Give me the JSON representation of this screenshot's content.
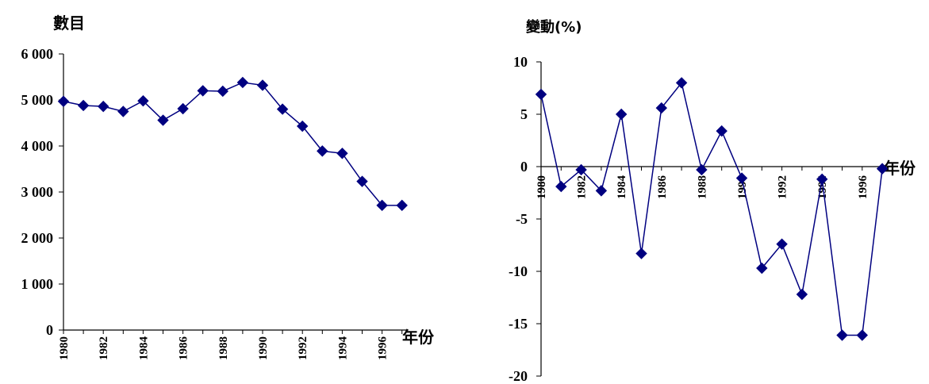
{
  "chart_data": [
    {
      "type": "line",
      "title": "數目",
      "xlabel": "年份",
      "ylabel": "",
      "ylim": [
        0,
        6000
      ],
      "yticks": [
        "0",
        "1 000",
        "2 000",
        "3 000",
        "4 000",
        "5 000",
        "6 000"
      ],
      "ytick_values": [
        0,
        1000,
        2000,
        3000,
        4000,
        5000,
        6000
      ],
      "x": [
        1980,
        1981,
        1982,
        1983,
        1984,
        1985,
        1986,
        1987,
        1988,
        1989,
        1990,
        1991,
        1992,
        1993,
        1994,
        1995,
        1996,
        1997
      ],
      "xtick_labels": [
        "1980",
        "1982",
        "1984",
        "1986",
        "1988",
        "1990",
        "1992",
        "1994",
        "1996"
      ],
      "series": [
        {
          "values": [
            4970,
            4880,
            4860,
            4750,
            4980,
            4560,
            4810,
            5200,
            5190,
            5380,
            5320,
            4800,
            4430,
            3890,
            3840,
            3230,
            2710,
            2710
          ]
        }
      ],
      "color": "#000080",
      "marker": "diamond",
      "grid": false,
      "legend": "none"
    },
    {
      "type": "line",
      "title": "變動(%)",
      "xlabel": "年份",
      "ylabel": "",
      "ylim": [
        -20,
        10
      ],
      "yticks": [
        "-20",
        "-15",
        "-10",
        "-5",
        "0",
        "5",
        "10"
      ],
      "ytick_values": [
        -20,
        -15,
        -10,
        -5,
        0,
        5,
        10
      ],
      "x": [
        1980,
        1981,
        1982,
        1983,
        1984,
        1985,
        1986,
        1987,
        1988,
        1989,
        1990,
        1991,
        1992,
        1993,
        1994,
        1995,
        1996,
        1997
      ],
      "xtick_labels": [
        "1980",
        "1982",
        "1984",
        "1986",
        "1988",
        "1990",
        "1992",
        "1994",
        "1996"
      ],
      "series": [
        {
          "values": [
            6.9,
            -1.9,
            -0.3,
            -2.3,
            5.0,
            -8.3,
            5.6,
            8.0,
            -0.3,
            3.4,
            -1.1,
            -9.7,
            -7.4,
            -12.2,
            -1.2,
            -16.1,
            -16.1,
            -0.2
          ]
        }
      ],
      "color": "#000080",
      "marker": "diamond",
      "grid": false,
      "legend": "none"
    }
  ]
}
